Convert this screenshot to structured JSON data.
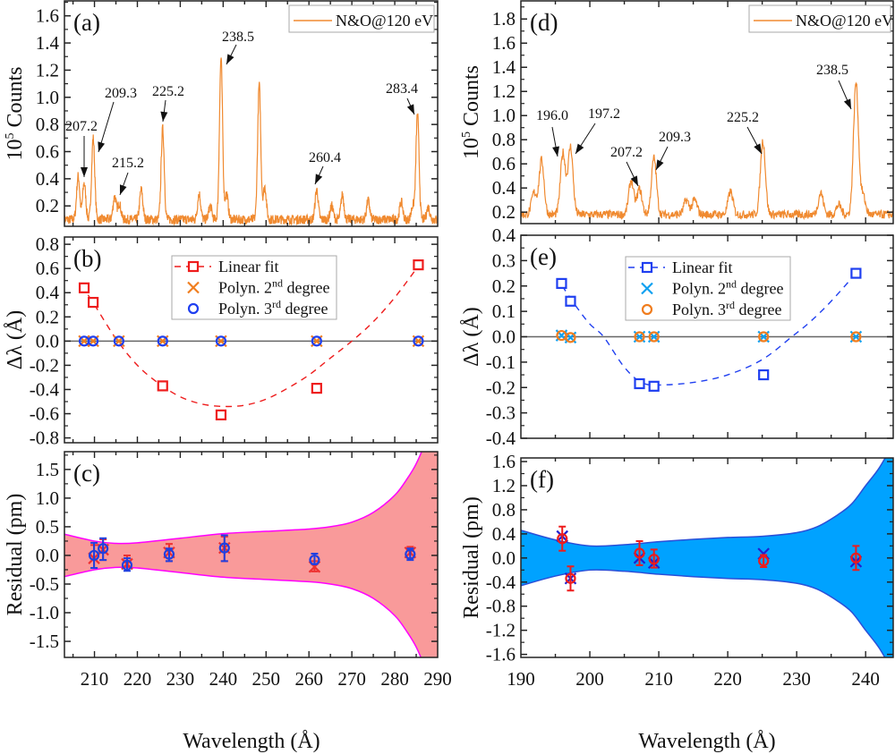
{
  "figure": {
    "xlabel": "Wavelength (Å)"
  },
  "chart_data": [
    {
      "id": "a",
      "type": "line",
      "panel_label": "(a)",
      "ylabel": {
        "pre": "10",
        "sup": "5",
        "post": " Counts"
      },
      "xlim": [
        203,
        290
      ],
      "ylim": [
        0.05,
        1.71
      ],
      "yticks": [
        "0.2",
        "0.4",
        "0.6",
        "0.8",
        "1.0",
        "1.2",
        "1.4",
        "1.6"
      ],
      "legend": [
        {
          "label": "N&O@120 eV"
        }
      ],
      "color": "#f08a30",
      "baseline": 0.1,
      "peaks": [
        [
          206.2,
          0.42
        ],
        [
          207.6,
          0.37
        ],
        [
          209.7,
          0.7
        ],
        [
          214.7,
          0.27
        ],
        [
          215.8,
          0.22
        ],
        [
          220.9,
          0.32
        ],
        [
          225.9,
          0.77
        ],
        [
          234.4,
          0.29
        ],
        [
          237.0,
          0.2
        ],
        [
          239.5,
          1.29
        ],
        [
          240.8,
          0.29
        ],
        [
          248.4,
          1.09
        ],
        [
          249.7,
          0.34
        ],
        [
          261.8,
          0.32
        ],
        [
          265.3,
          0.2
        ],
        [
          267.8,
          0.28
        ],
        [
          273.8,
          0.24
        ],
        [
          281.5,
          0.23
        ],
        [
          284.2,
          0.2
        ],
        [
          285.3,
          0.88
        ],
        [
          287.8,
          0.19
        ]
      ],
      "annotations": [
        "207.2",
        "209.3",
        "215.2",
        "225.2",
        "238.5",
        "260.4",
        "283.4"
      ]
    },
    {
      "id": "b",
      "type": "scatter",
      "panel_label": "(b)",
      "ylabel": {
        "pre": "Δλ (Å)",
        "sup": "",
        "post": ""
      },
      "xlim": [
        203,
        290
      ],
      "ylim": [
        -0.84,
        0.86
      ],
      "yticks": [
        "-0.8",
        "-0.6",
        "-0.4",
        "-0.2",
        "0.0",
        "0.2",
        "0.4",
        "0.6",
        "0.8"
      ],
      "zero_line": true,
      "legend": [
        {
          "label": "Linear fit",
          "sup": "",
          "post": ""
        },
        {
          "label": "Polyn. 2",
          "sup": "nd",
          "post": " degree"
        },
        {
          "label": "Polyn. 3",
          "sup": "rd",
          "post": " degree"
        }
      ],
      "series": [
        {
          "marker": "square",
          "color": "#ee1c1c",
          "x": [
            207.6,
            209.7,
            225.9,
            239.5,
            261.8,
            285.5
          ],
          "y": [
            0.44,
            0.32,
            -0.37,
            -0.61,
            -0.39,
            0.63
          ]
        },
        {
          "marker": "cross",
          "color": "#f07d1e",
          "x": [
            207.6,
            209.7,
            215.7,
            225.9,
            239.5,
            261.8,
            285.5
          ],
          "y": [
            0,
            0,
            0,
            0,
            0,
            0,
            0
          ]
        },
        {
          "marker": "circle",
          "color": "#1f3ff0",
          "x": [
            207.6,
            209.7,
            215.7,
            225.9,
            239.5,
            261.8,
            285.5
          ],
          "y": [
            0,
            0,
            0,
            0,
            0,
            0,
            0
          ]
        }
      ],
      "fit_curve": {
        "color": "#ee1c1c",
        "x": [
          207,
          210,
          215,
          220,
          225,
          230,
          235,
          240,
          245,
          250,
          255,
          260,
          265,
          270,
          275,
          280,
          285.5
        ],
        "y": [
          0.46,
          0.3,
          0.02,
          -0.2,
          -0.35,
          -0.46,
          -0.52,
          -0.54,
          -0.53,
          -0.48,
          -0.39,
          -0.28,
          -0.14,
          0.0,
          0.16,
          0.36,
          0.62
        ]
      }
    },
    {
      "id": "c",
      "type": "scatter",
      "panel_label": "(c)",
      "ylabel": {
        "pre": "Residual (pm)",
        "sup": "",
        "post": ""
      },
      "xlim": [
        203,
        290
      ],
      "ylim": [
        -1.78,
        1.81
      ],
      "yticks": [
        "-1.5",
        "-1.0",
        "-0.5",
        "0.0",
        "0.5",
        "1.0",
        "1.5"
      ],
      "xticks": [
        "210",
        "220",
        "230",
        "240",
        "250",
        "260",
        "270",
        "280",
        "290"
      ],
      "band": {
        "fill": "#f99a9a",
        "edge": "#ff00ff",
        "x": [
          203,
          210,
          215,
          220,
          230,
          240,
          250,
          260,
          265,
          270,
          275,
          280,
          283,
          285,
          287,
          289,
          290
        ],
        "half_width": [
          0.37,
          0.25,
          0.21,
          0.22,
          0.3,
          0.38,
          0.42,
          0.46,
          0.5,
          0.58,
          0.75,
          1.05,
          1.35,
          1.6,
          1.95,
          2.4,
          2.7
        ]
      },
      "series": [
        {
          "marker": "cross",
          "color": "#ee3030",
          "x": [
            209.9,
            212.0,
            217.6,
            227.4,
            240.3,
            261.3,
            283.6
          ],
          "y": [
            -0.05,
            0.1,
            -0.15,
            0.05,
            0.13,
            -0.2,
            0.05
          ],
          "err_lo": [
            -0.22,
            -0.08,
            -0.2,
            -0.1,
            -0.1,
            -0.28,
            -0.05
          ],
          "err_hi": [
            0.18,
            0.28,
            0.0,
            0.2,
            0.33,
            -0.1,
            0.15
          ]
        },
        {
          "marker": "circle",
          "color": "#2040e0",
          "x": [
            209.9,
            212.0,
            217.6,
            227.4,
            240.3,
            261.3,
            283.6
          ],
          "y": [
            0.0,
            0.12,
            -0.17,
            0.02,
            0.13,
            -0.08,
            0.02
          ],
          "err_lo": [
            -0.22,
            -0.08,
            -0.27,
            -0.1,
            -0.1,
            -0.15,
            -0.08
          ],
          "err_hi": [
            0.22,
            0.3,
            -0.05,
            0.12,
            0.35,
            0.03,
            0.12
          ]
        }
      ]
    },
    {
      "id": "d",
      "type": "line",
      "panel_label": "(d)",
      "ylabel": {
        "pre": "10",
        "sup": "5",
        "post": " Counts"
      },
      "xlim": [
        190,
        244
      ],
      "ylim": [
        0.105,
        1.95
      ],
      "yticks": [
        "0.2",
        "0.4",
        "0.6",
        "0.8",
        "1.0",
        "1.2",
        "1.4",
        "1.6",
        "1.8"
      ],
      "legend": [
        {
          "label": "N&O@120 eV"
        }
      ],
      "color": "#f08a30",
      "baseline": 0.18,
      "peaks": [
        [
          191.9,
          0.36
        ],
        [
          193.0,
          0.63
        ],
        [
          196.1,
          0.69
        ],
        [
          197.2,
          0.74
        ],
        [
          206.0,
          0.46
        ],
        [
          207.2,
          0.39
        ],
        [
          209.3,
          0.65
        ],
        [
          214.0,
          0.3
        ],
        [
          215.2,
          0.3
        ],
        [
          220.4,
          0.37
        ],
        [
          225.1,
          0.79
        ],
        [
          233.5,
          0.36
        ],
        [
          236.1,
          0.26
        ],
        [
          238.6,
          1.27
        ],
        [
          239.6,
          0.34
        ]
      ],
      "annotations": [
        "196.0",
        "197.2",
        "207.2",
        "209.3",
        "225.2",
        "238.5"
      ]
    },
    {
      "id": "e",
      "type": "scatter",
      "panel_label": "(e)",
      "ylabel": {
        "pre": "Δλ (Å)",
        "sup": "",
        "post": ""
      },
      "xlim": [
        190,
        244
      ],
      "ylim": [
        -0.4,
        0.4
      ],
      "yticks": [
        "-0.4",
        "-0.3",
        "-0.2",
        "-0.1",
        "0.0",
        "0.1",
        "0.2",
        "0.3",
        "0.4"
      ],
      "zero_line": true,
      "legend": [
        {
          "label": "Linear fit",
          "sup": "",
          "post": ""
        },
        {
          "label": "Polyn. 2",
          "sup": "nd",
          "post": " degree"
        },
        {
          "label": "Polyn. 3",
          "sup": "rd",
          "post": " degree"
        }
      ],
      "series": [
        {
          "marker": "square",
          "color": "#1f3ff0",
          "x": [
            195.9,
            197.2,
            207.2,
            209.3,
            225.2,
            238.6
          ],
          "y": [
            0.21,
            0.14,
            -0.185,
            -0.195,
            -0.15,
            0.25
          ]
        },
        {
          "marker": "cross",
          "color": "#10a0f0",
          "x": [
            195.9,
            197.2,
            207.2,
            209.3,
            225.2,
            238.6
          ],
          "y": [
            0.005,
            -0.003,
            0,
            0,
            0,
            0
          ]
        },
        {
          "marker": "circle",
          "color": "#f07d1e",
          "x": [
            195.9,
            197.2,
            207.2,
            209.3,
            225.2,
            238.6
          ],
          "y": [
            0.005,
            -0.003,
            0,
            0,
            0,
            0
          ]
        }
      ],
      "fit_curve": {
        "color": "#1f3ff0",
        "x": [
          196,
          198,
          200,
          202,
          205,
          207.5,
          210,
          215,
          220,
          225,
          229.3,
          232,
          235,
          238.6
        ],
        "y": [
          0.2,
          0.12,
          0.05,
          0.0,
          -0.12,
          -0.18,
          -0.19,
          -0.18,
          -0.15,
          -0.09,
          0.0,
          0.06,
          0.14,
          0.25
        ]
      }
    },
    {
      "id": "f",
      "type": "scatter",
      "panel_label": "(f)",
      "ylabel": {
        "pre": "Residual (pm)",
        "sup": "",
        "post": ""
      },
      "xlim": [
        190,
        244
      ],
      "ylim": [
        -1.65,
        1.66
      ],
      "yticks": [
        "-1.6",
        "-1.2",
        "-0.8",
        "-0.4",
        "0.0",
        "0.4",
        "0.8",
        "1.2",
        "1.6"
      ],
      "xticks": [
        "190",
        "200",
        "210",
        "220",
        "230",
        "240"
      ],
      "band": {
        "fill": "#00a2ff",
        "edge": "#2a4fd8",
        "x": [
          190,
          195,
          200,
          205,
          210,
          215,
          220,
          225,
          230,
          233,
          236,
          238,
          240,
          242,
          244
        ],
        "half_width": [
          0.46,
          0.3,
          0.2,
          0.22,
          0.27,
          0.31,
          0.34,
          0.36,
          0.42,
          0.52,
          0.72,
          0.9,
          1.2,
          1.5,
          1.9
        ]
      },
      "series": [
        {
          "marker": "cross",
          "color": "#2020d0",
          "x": [
            196.0,
            197.2,
            207.2,
            209.3,
            225.2,
            238.6
          ],
          "y": [
            0.36,
            -0.34,
            0.0,
            -0.08,
            0.07,
            -0.06
          ]
        },
        {
          "marker": "circle",
          "color": "#ee1c1c",
          "x": [
            196.0,
            197.2,
            207.2,
            209.3,
            225.2,
            238.6
          ],
          "y": [
            0.32,
            -0.34,
            0.08,
            -0.02,
            -0.05,
            0.0
          ],
          "err_lo": [
            0.12,
            -0.54,
            -0.12,
            -0.16,
            -0.15,
            -0.2
          ],
          "err_hi": [
            0.52,
            -0.14,
            0.28,
            0.14,
            0.05,
            0.2
          ]
        }
      ]
    }
  ]
}
